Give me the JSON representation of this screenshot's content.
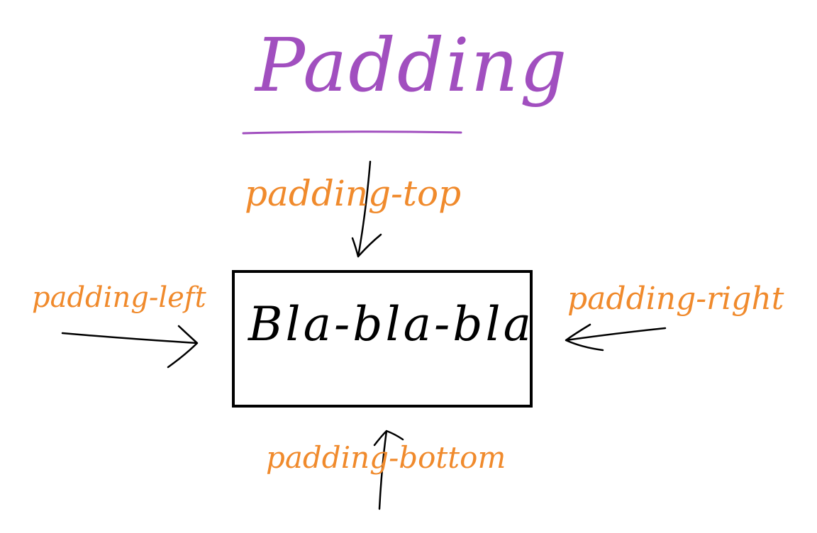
{
  "title": "Padding",
  "content_text": "Bla-bla-bla",
  "labels": {
    "top": "padding-top",
    "left": "padding-left",
    "right": "padding-right",
    "bottom": "padding-bottom"
  },
  "colors": {
    "title": "#a14fbf",
    "label": "#f08a2c",
    "ink": "#000000"
  }
}
